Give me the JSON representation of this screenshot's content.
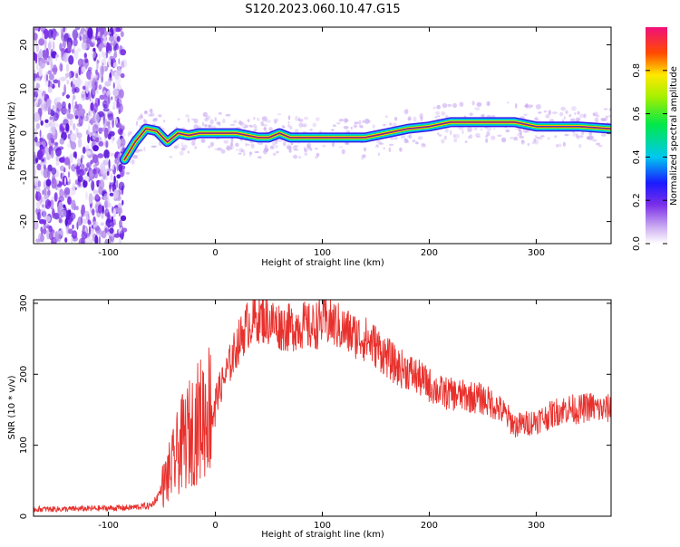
{
  "title": "S120.2023.060.10.47.G15",
  "chart_data": [
    {
      "type": "heatmap",
      "xlabel": "Height of straight line (km)",
      "ylabel": "Frequency (Hz)",
      "xlim": [
        -170,
        370
      ],
      "ylim": [
        -25,
        24
      ],
      "xticks": [
        -100,
        0,
        100,
        200,
        300
      ],
      "yticks": [
        20,
        10,
        0,
        -10,
        -20
      ],
      "colorbar": {
        "label": "Normalized spectral amplitude",
        "range": [
          0,
          1
        ],
        "ticks": [
          0.0,
          0.2,
          0.4,
          0.6,
          0.8
        ]
      },
      "noise_region_x": [
        -170,
        -85
      ],
      "frequency_trace": {
        "x": [
          -85,
          -75,
          -65,
          -55,
          -45,
          -35,
          -25,
          -15,
          0,
          20,
          40,
          50,
          60,
          70,
          100,
          140,
          160,
          180,
          200,
          220,
          280,
          300,
          340,
          370
        ],
        "y": [
          -6,
          -2,
          1,
          0.5,
          -2,
          0,
          -0.5,
          0,
          0,
          0,
          -1,
          -1,
          0,
          -1,
          -1,
          -1,
          0,
          1,
          1.5,
          2.5,
          2.5,
          1.5,
          1.5,
          1
        ]
      }
    },
    {
      "type": "line",
      "xlabel": "Height of straight line (km)",
      "ylabel": "SNR (10 * v/v)",
      "xlim": [
        -170,
        370
      ],
      "ylim": [
        0,
        305
      ],
      "xticks": [
        -100,
        0,
        100,
        200,
        300
      ],
      "yticks": [
        0,
        100,
        200,
        300
      ],
      "color": "#e8302c",
      "series": [
        {
          "x": [
            -170,
            -140,
            -110,
            -80,
            -60,
            -55,
            -50,
            -45,
            -40,
            -35,
            -30,
            -25,
            -20,
            -15,
            -10,
            -5,
            0,
            10,
            20,
            30,
            40,
            50,
            60,
            70,
            80,
            90,
            100,
            110,
            120,
            130,
            140,
            150,
            160,
            170,
            180,
            190,
            200,
            210,
            220,
            230,
            240,
            250,
            260,
            270,
            280,
            290,
            300,
            310,
            320,
            330,
            340,
            350,
            360,
            370
          ],
          "values": [
            10,
            10,
            11,
            12,
            15,
            25,
            40,
            55,
            70,
            90,
            105,
            115,
            125,
            135,
            145,
            155,
            165,
            200,
            240,
            270,
            280,
            275,
            268,
            265,
            270,
            265,
            275,
            272,
            262,
            255,
            250,
            240,
            225,
            210,
            205,
            195,
            185,
            175,
            172,
            170,
            168,
            165,
            158,
            145,
            128,
            130,
            135,
            140,
            148,
            152,
            150,
            155,
            150,
            152
          ]
        }
      ]
    }
  ]
}
